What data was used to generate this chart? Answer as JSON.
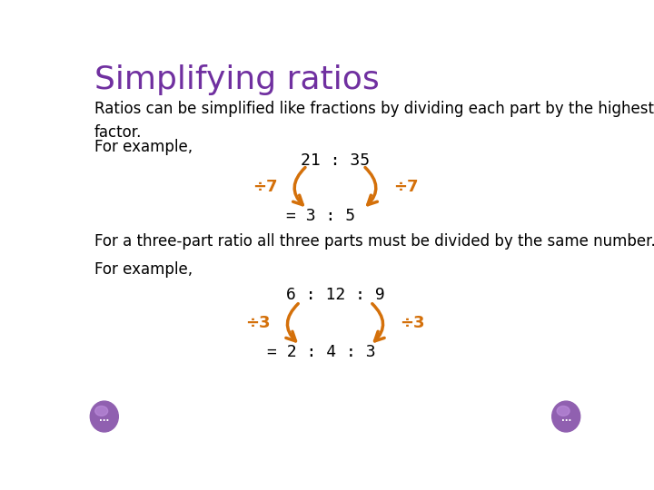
{
  "title": "Simplifying ratios",
  "title_color": "#7030a0",
  "title_fontsize": 26,
  "body_text_color": "#000000",
  "body_fontsize": 12,
  "background_color": "#ffffff",
  "paragraph1": "Ratios can be simplified like fractions by dividing each part by the highest common\nfactor.",
  "for_example1": "For example,",
  "for_example2": "For example,",
  "ratio1_top": "21 : 35",
  "ratio1_bottom": "= 3 : 5",
  "divisor1": "÷7",
  "ratio2_top": "6 : 12 : 9",
  "ratio2_bottom": "= 2 : 4 : 3",
  "divisor2": "÷3",
  "three_part_text": "For a three-part ratio all three parts must be divided by the same number.",
  "orange_color": "#d4700a",
  "nav_color": "#9060b0",
  "ratio_fontsize": 12,
  "div_fontsize": 13
}
